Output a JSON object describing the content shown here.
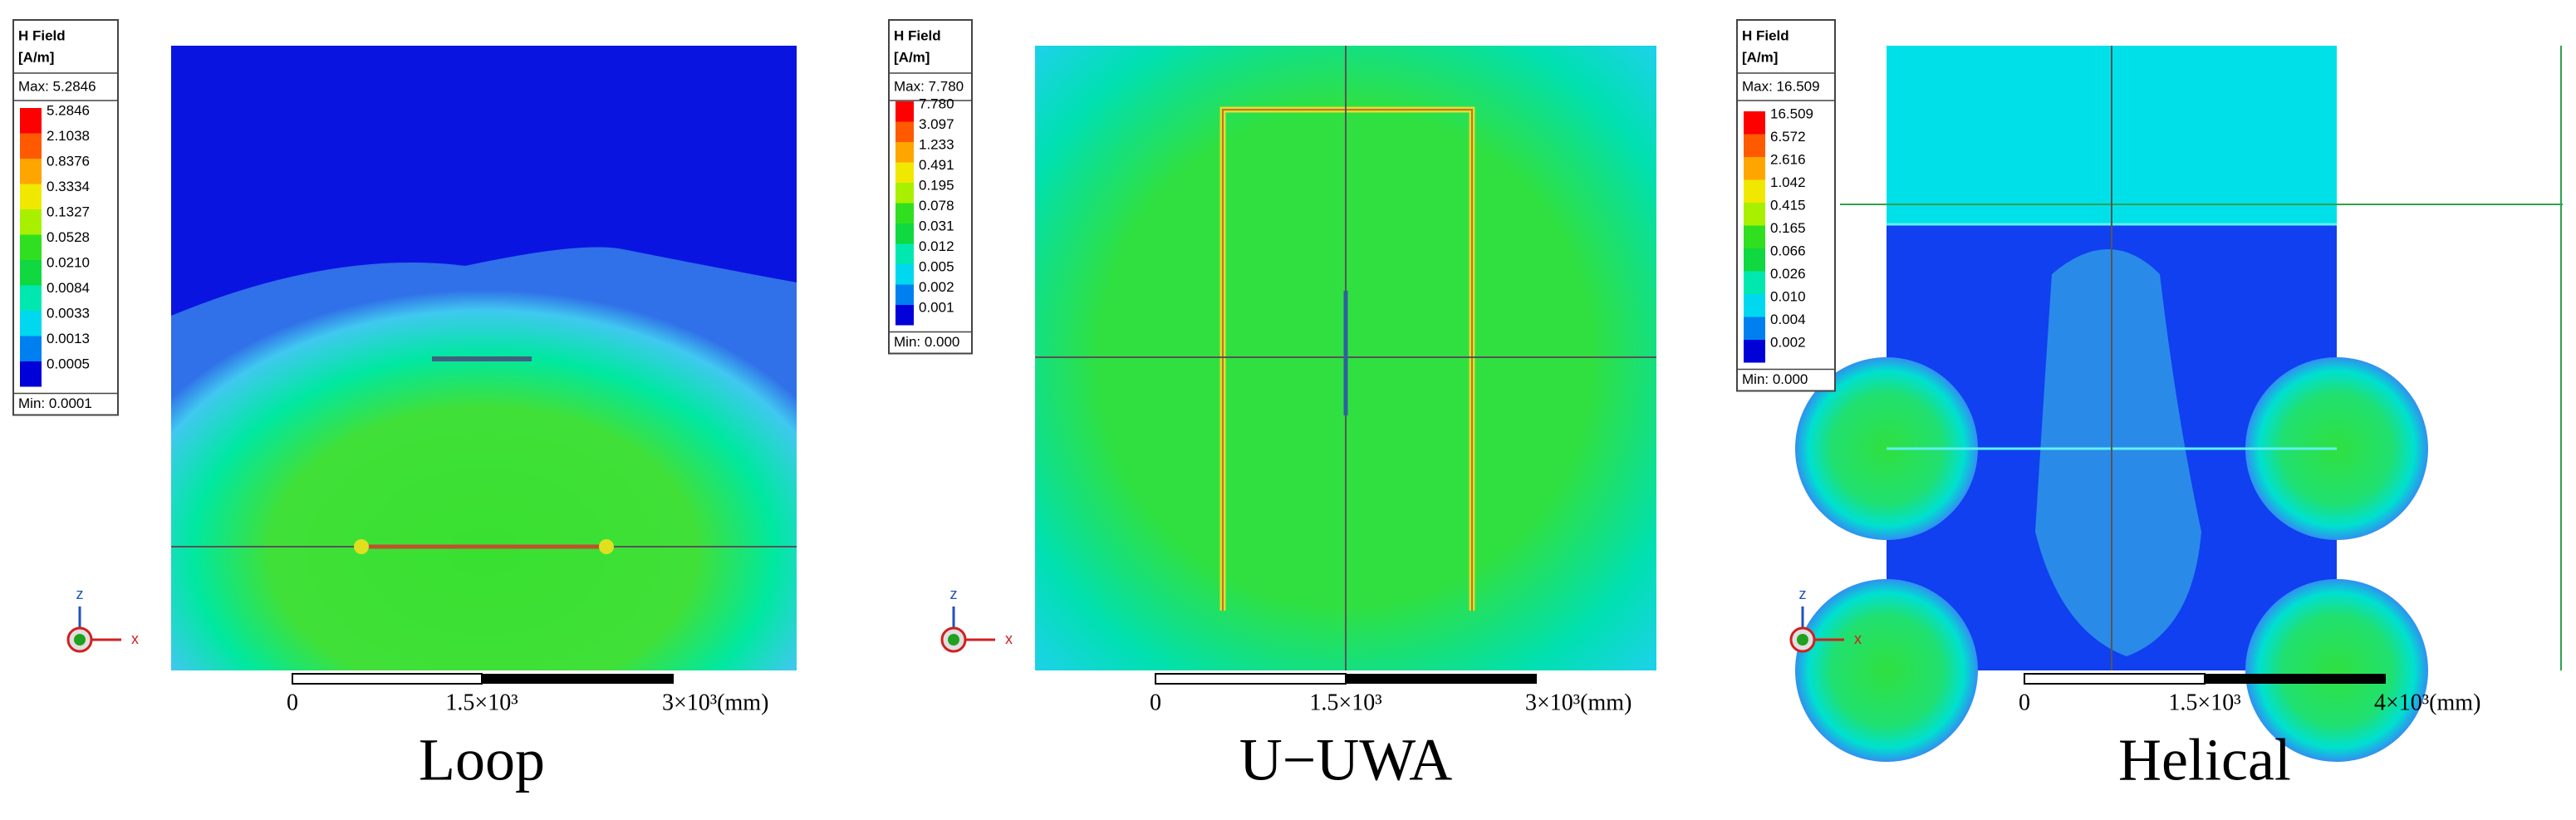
{
  "panels": [
    {
      "legend_title": "H Field",
      "unit": "[A/m]",
      "max": "Max: 5.2846",
      "levels": [
        "5.2846",
        "2.1038",
        "0.8376",
        "0.3334",
        "0.1327",
        "0.0528",
        "0.0210",
        "0.0084",
        "0.0033",
        "0.0013",
        "0.0005"
      ],
      "min": "Min: 0.0001",
      "axes": [
        "z",
        "x"
      ],
      "scale_labels": [
        "0",
        "1.5×10³",
        "3×10³(mm)"
      ],
      "caption": "Loop"
    },
    {
      "legend_title": "H Field",
      "unit": "[A/m]",
      "max": "Max: 7.780",
      "levels": [
        "7.780",
        "3.097",
        "1.233",
        "0.491",
        "0.195",
        "0.078",
        "0.031",
        "0.012",
        "0.005",
        "0.002",
        "0.001"
      ],
      "min": "Min: 0.000",
      "axes": [
        "z",
        "x"
      ],
      "scale_labels": [
        "0",
        "1.5×10³",
        "3×10³(mm)"
      ],
      "caption": "U−UWA"
    },
    {
      "legend_title": "H Field",
      "unit": "[A/m]",
      "max": "Max: 16.509",
      "levels": [
        "16.509",
        "6.572",
        "2.616",
        "1.042",
        "0.415",
        "0.165",
        "0.066",
        "0.026",
        "0.010",
        "0.004",
        "0.002"
      ],
      "min": "Min:  0.000",
      "axes": [
        "z",
        "x"
      ],
      "scale_labels": [
        "0",
        "1.5×10³",
        "4×10³(mm)"
      ],
      "caption": "Helical"
    }
  ]
}
